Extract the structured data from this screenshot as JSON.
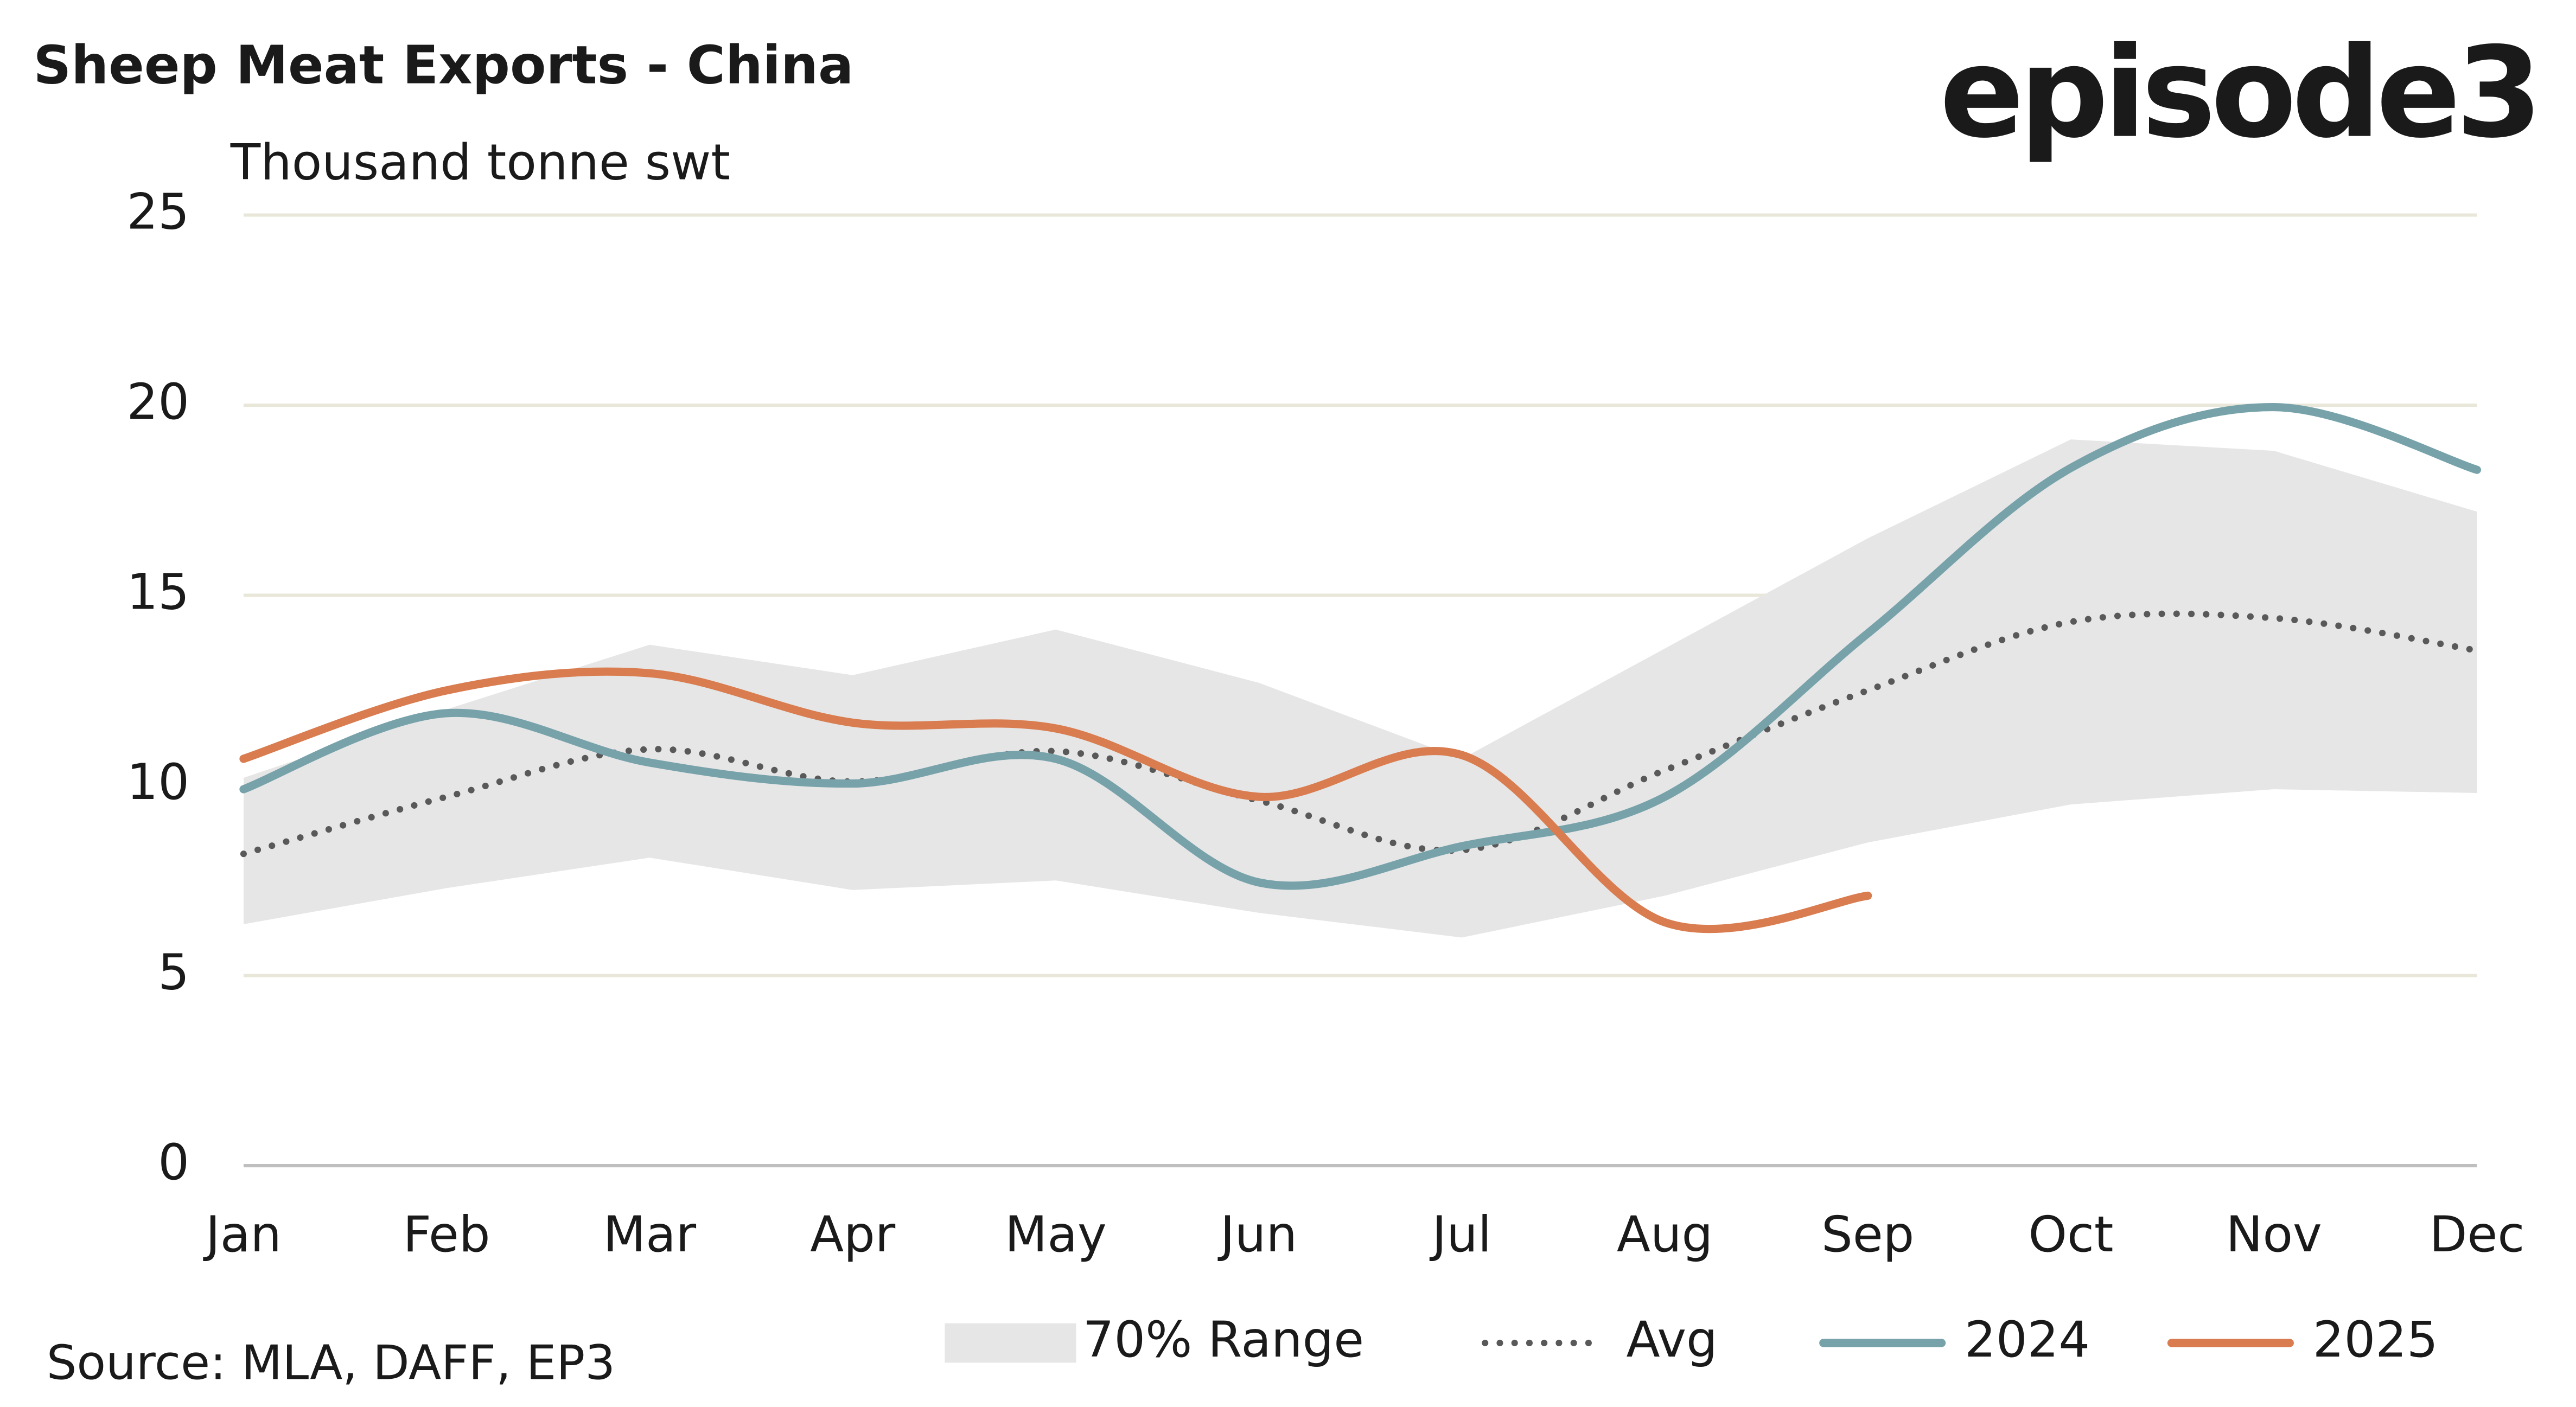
{
  "chart_data": {
    "type": "line",
    "title": "Sheep Meat Exports - China",
    "y_label": "Thousand tonne swt",
    "logo": "episode3",
    "source": "Source: MLA, DAFF, EP3",
    "categories": [
      "Jan",
      "Feb",
      "Mar",
      "Apr",
      "May",
      "Jun",
      "Jul",
      "Aug",
      "Sep",
      "Oct",
      "Nov",
      "Dec"
    ],
    "ylim": [
      0,
      25
    ],
    "yticks": [
      0,
      5,
      10,
      15,
      20,
      25
    ],
    "grid": true,
    "legend": "bottom",
    "series": [
      {
        "name": "70% Range",
        "kind": "range",
        "color": "#e6e6e6",
        "high": [
          10.2,
          12,
          13.7,
          12.9,
          14.1,
          12.7,
          10.7,
          13.6,
          16.5,
          19.1,
          18.8,
          17.2
        ],
        "low": [
          6.35,
          7.3,
          8.1,
          7.25,
          7.5,
          6.65,
          6.0,
          7.1,
          8.5,
          9.5,
          9.9,
          9.8
        ]
      },
      {
        "name": "Avg",
        "kind": "dotted",
        "color": "#595959",
        "values": [
          8.2,
          9.7,
          10.95,
          10.1,
          10.9,
          9.6,
          8.3,
          10.4,
          12.5,
          14.3,
          14.4,
          13.55
        ]
      },
      {
        "name": "2024",
        "kind": "solid",
        "color": "#77a2aa",
        "values": [
          9.9,
          11.9,
          10.6,
          10.05,
          10.7,
          7.45,
          8.4,
          9.7,
          14.0,
          18.35,
          19.95,
          18.3
        ]
      },
      {
        "name": "2025",
        "kind": "solid",
        "color": "#d97c4f",
        "values": [
          10.7,
          12.5,
          12.95,
          11.65,
          11.5,
          9.7,
          10.8,
          6.4,
          7.1,
          null,
          null,
          null
        ]
      }
    ]
  }
}
